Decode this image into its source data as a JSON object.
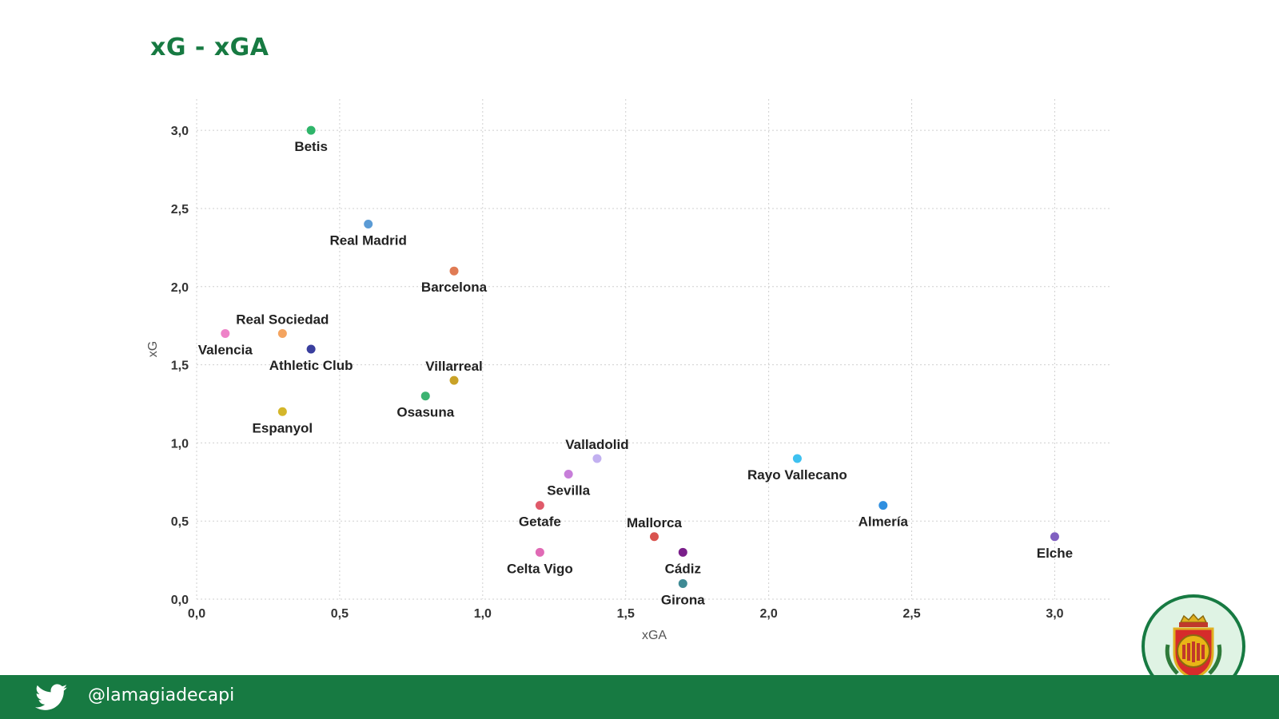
{
  "title": "xG - xGA",
  "footer": {
    "handle": "@lamagiadecapi",
    "icon": "twitter-bird-icon"
  },
  "badge": {
    "icon": "rcd-mallorca-crest-icon"
  },
  "chart_data": {
    "type": "scatter",
    "title": "xG - xGA",
    "xlabel": "xGA",
    "ylabel": "xG",
    "xlim": [
      0,
      3.2
    ],
    "ylim": [
      0,
      3.2
    ],
    "x_ticks": [
      "0,0",
      "0,5",
      "1,0",
      "1,5",
      "2,0",
      "2,5",
      "3,0"
    ],
    "y_ticks": [
      "0,0",
      "0,5",
      "1,0",
      "1,5",
      "2,0",
      "2,5",
      "3,0"
    ],
    "grid": true,
    "points": [
      {
        "label": "Betis",
        "x": 0.4,
        "y": 3.0,
        "color": "#2fb56a",
        "label_pos": "below"
      },
      {
        "label": "Real Madrid",
        "x": 0.6,
        "y": 2.4,
        "color": "#5b9bd5",
        "label_pos": "below"
      },
      {
        "label": "Barcelona",
        "x": 0.9,
        "y": 2.1,
        "color": "#e07b54",
        "label_pos": "below"
      },
      {
        "label": "Real Sociedad",
        "x": 0.3,
        "y": 1.7,
        "color": "#f4a460",
        "label_pos": "above"
      },
      {
        "label": "Valencia",
        "x": 0.1,
        "y": 1.7,
        "color": "#ee82c8",
        "label_pos": "below"
      },
      {
        "label": "Athletic Club",
        "x": 0.4,
        "y": 1.6,
        "color": "#3a3f9e",
        "label_pos": "below"
      },
      {
        "label": "Villarreal",
        "x": 0.9,
        "y": 1.4,
        "color": "#c9a227",
        "label_pos": "above"
      },
      {
        "label": "Osasuna",
        "x": 0.8,
        "y": 1.3,
        "color": "#3cb371",
        "label_pos": "below"
      },
      {
        "label": "Espanyol",
        "x": 0.3,
        "y": 1.2,
        "color": "#d4b62a",
        "label_pos": "below"
      },
      {
        "label": "Valladolid",
        "x": 1.4,
        "y": 0.9,
        "color": "#c2b0f0",
        "label_pos": "above"
      },
      {
        "label": "Sevilla",
        "x": 1.3,
        "y": 0.8,
        "color": "#c77ed9",
        "label_pos": "below"
      },
      {
        "label": "Getafe",
        "x": 1.2,
        "y": 0.6,
        "color": "#e05a6a",
        "label_pos": "below"
      },
      {
        "label": "Celta Vigo",
        "x": 1.2,
        "y": 0.3,
        "color": "#e06ab5",
        "label_pos": "below"
      },
      {
        "label": "Mallorca",
        "x": 1.6,
        "y": 0.4,
        "color": "#d9534f",
        "label_pos": "above"
      },
      {
        "label": "Cádiz",
        "x": 1.7,
        "y": 0.3,
        "color": "#7a1f8a",
        "label_pos": "below"
      },
      {
        "label": "Girona",
        "x": 1.7,
        "y": 0.1,
        "color": "#3e8a94",
        "label_pos": "below"
      },
      {
        "label": "Rayo Vallecano",
        "x": 2.1,
        "y": 0.9,
        "color": "#3ec1f0",
        "label_pos": "below"
      },
      {
        "label": "Almería",
        "x": 2.4,
        "y": 0.6,
        "color": "#2f8fe0",
        "label_pos": "below"
      },
      {
        "label": "Elche",
        "x": 3.0,
        "y": 0.4,
        "color": "#8060c0",
        "label_pos": "below"
      }
    ]
  }
}
